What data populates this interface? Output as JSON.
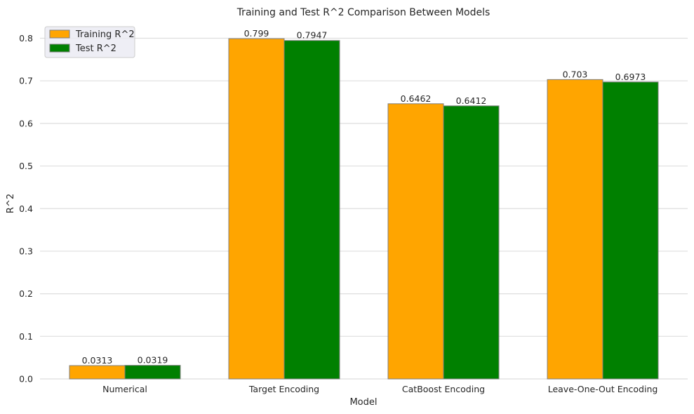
{
  "chart_data": {
    "type": "bar",
    "title": "Training and Test R^2 Comparison Between Models",
    "xlabel": "Model",
    "ylabel": "R^2",
    "categories": [
      "Numerical",
      "Target Encoding",
      "CatBoost Encoding",
      "Leave-One-Out Encoding"
    ],
    "series": [
      {
        "name": "Training R^2",
        "values": [
          0.0313,
          0.799,
          0.6462,
          0.703
        ],
        "labels": [
          "0.0313",
          "0.799",
          "0.6462",
          "0.703"
        ],
        "color": "#ffa500"
      },
      {
        "name": "Test R^2",
        "values": [
          0.0319,
          0.7947,
          0.6412,
          0.6973
        ],
        "labels": [
          "0.0319",
          "0.7947",
          "0.6412",
          "0.6973"
        ],
        "color": "#008000"
      }
    ],
    "ylim": [
      0,
      0.8
    ],
    "yticks": [
      0.0,
      0.1,
      0.2,
      0.3,
      0.4,
      0.5,
      0.6,
      0.7,
      0.8
    ],
    "ytick_labels": [
      "0.0",
      "0.1",
      "0.2",
      "0.3",
      "0.4",
      "0.5",
      "0.6",
      "0.7",
      "0.8"
    ],
    "grid": "horizontal",
    "legend": "top-left",
    "bar_edge_color": "#808080",
    "grid_color": "#dedede"
  }
}
